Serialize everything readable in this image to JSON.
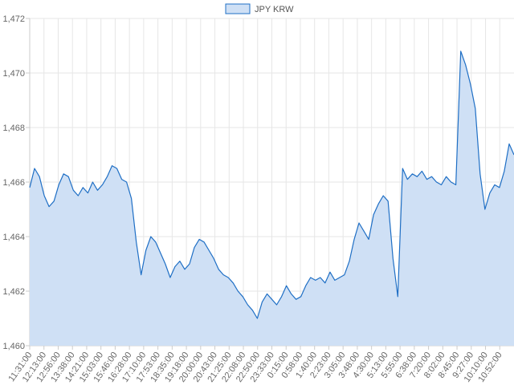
{
  "chart_data": {
    "type": "area",
    "legend": {
      "label": "JPY KRW",
      "position": "top-center"
    },
    "colors": {
      "line": "#1f6fc5",
      "fill": "#cfe0f5",
      "grid": "#e6e6e6",
      "axis": "#cccccc",
      "tick_text": "#666666"
    },
    "grid": true,
    "ylim": [
      1460,
      1472
    ],
    "y_ticks": [
      1460,
      1462,
      1464,
      1466,
      1468,
      1470,
      1472
    ],
    "y_tick_labels": [
      "1,460",
      "1,462",
      "1,464",
      "1,466",
      "1,468",
      "1,470",
      "1,472"
    ],
    "x_ticks": [
      "11:31:00",
      "12:13:00",
      "12:56:00",
      "13:38:00",
      "14:21:00",
      "15:03:00",
      "15:46:00",
      "16:28:00",
      "17:10:00",
      "17:53:00",
      "18:35:00",
      "19:18:00",
      "20:00:00",
      "20:43:00",
      "21:25:00",
      "22:08:00",
      "22:50:00",
      "23:33:00",
      "0:15:00",
      "0:58:00",
      "1:40:00",
      "2:23:00",
      "3:05:00",
      "3:48:00",
      "4:30:00",
      "5:13:00",
      "5:55:00",
      "6:38:00",
      "7:20:00",
      "8:02:00",
      "8:45:00",
      "9:27:00",
      "10:10:00",
      "10:52:00"
    ],
    "series": [
      {
        "name": "JPY KRW",
        "values": [
          1465.8,
          1466.5,
          1466.2,
          1465.5,
          1465.1,
          1465.3,
          1465.9,
          1466.3,
          1466.2,
          1465.7,
          1465.5,
          1465.8,
          1465.6,
          1466.0,
          1465.7,
          1465.9,
          1466.2,
          1466.6,
          1466.5,
          1466.1,
          1466.0,
          1465.4,
          1463.8,
          1462.6,
          1463.5,
          1464.0,
          1463.8,
          1463.4,
          1463.0,
          1462.5,
          1462.9,
          1463.1,
          1462.8,
          1463.0,
          1463.6,
          1463.9,
          1463.8,
          1463.5,
          1463.2,
          1462.8,
          1462.6,
          1462.5,
          1462.3,
          1462.0,
          1461.8,
          1461.5,
          1461.3,
          1461.0,
          1461.6,
          1461.9,
          1461.7,
          1461.5,
          1461.8,
          1462.2,
          1461.9,
          1461.7,
          1461.8,
          1462.2,
          1462.5,
          1462.4,
          1462.5,
          1462.3,
          1462.7,
          1462.4,
          1462.5,
          1462.6,
          1463.1,
          1463.9,
          1464.5,
          1464.2,
          1463.9,
          1464.8,
          1465.2,
          1465.5,
          1465.3,
          1463.2,
          1461.8,
          1466.5,
          1466.1,
          1466.3,
          1466.2,
          1466.4,
          1466.1,
          1466.2,
          1466.0,
          1465.9,
          1466.2,
          1466.0,
          1465.9,
          1470.8,
          1470.3,
          1469.6,
          1468.7,
          1466.3,
          1465.0,
          1465.6,
          1465.9,
          1465.8,
          1466.4,
          1467.4,
          1467.0
        ]
      }
    ]
  }
}
